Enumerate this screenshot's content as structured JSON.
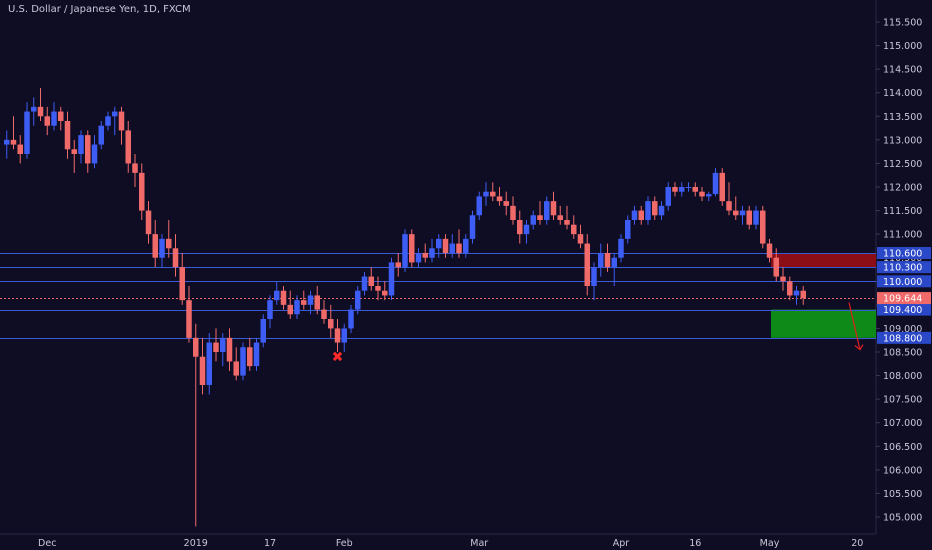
{
  "chart_data": {
    "type": "candlestick",
    "title": "U.S. Dollar / Japanese Yen, 1D, FXCM",
    "ylim": [
      104.75,
      115.75
    ],
    "y_ticks": [
      "115.500",
      "115.000",
      "114.500",
      "114.000",
      "113.500",
      "113.000",
      "112.500",
      "112.000",
      "111.500",
      "111.000",
      "110.500",
      "110.000",
      "109.500",
      "109.000",
      "108.500",
      "108.000",
      "107.500",
      "107.000",
      "106.500",
      "106.000",
      "105.500",
      "105.000"
    ],
    "x_ticks": [
      {
        "label": "Dec",
        "index": 6
      },
      {
        "label": "2019",
        "index": 28
      },
      {
        "label": "17",
        "index": 39
      },
      {
        "label": "Feb",
        "index": 50
      },
      {
        "label": "Mar",
        "index": 70
      },
      {
        "label": "Apr",
        "index": 91
      },
      {
        "label": "16",
        "index": 102
      },
      {
        "label": "May",
        "index": 113
      },
      {
        "label": "20",
        "index": 126
      }
    ],
    "horizontal_levels": [
      {
        "value": 110.6,
        "label": "110.600"
      },
      {
        "value": 110.3,
        "label": "110.300"
      },
      {
        "value": 110.0,
        "label": "110.000"
      },
      {
        "value": 109.4,
        "label": "109.400"
      },
      {
        "value": 108.8,
        "label": "108.800"
      }
    ],
    "last_price": {
      "value": 109.644,
      "label": "109.644"
    },
    "zones": [
      {
        "kind": "resistance",
        "from": 110.6,
        "to": 110.3,
        "color": "#8b0e16"
      },
      {
        "kind": "target",
        "from": 109.4,
        "to": 108.8,
        "color": "#0d8a17"
      }
    ],
    "marker": {
      "symbol": "✖",
      "index": 49,
      "value": 108.43
    },
    "colors": {
      "up": "#3d5df5",
      "down": "#f06a6a",
      "level": "#3a5bd6",
      "price": "#f06a6a",
      "axis_text": "#c8c8d8",
      "background": "#0f0d24"
    },
    "ohlc": [
      [
        112.9,
        113.2,
        112.6,
        113.0
      ],
      [
        113.0,
        113.5,
        112.8,
        112.9
      ],
      [
        112.9,
        113.1,
        112.5,
        112.7
      ],
      [
        112.7,
        113.8,
        112.6,
        113.6
      ],
      [
        113.6,
        113.9,
        113.3,
        113.7
      ],
      [
        113.7,
        114.1,
        113.4,
        113.5
      ],
      [
        113.5,
        113.7,
        113.1,
        113.3
      ],
      [
        113.3,
        113.8,
        113.2,
        113.6
      ],
      [
        113.6,
        113.7,
        113.2,
        113.4
      ],
      [
        113.4,
        113.6,
        112.6,
        112.8
      ],
      [
        112.8,
        113.0,
        112.3,
        112.7
      ],
      [
        112.7,
        113.2,
        112.5,
        113.1
      ],
      [
        113.1,
        113.2,
        112.3,
        112.5
      ],
      [
        112.5,
        113.1,
        112.4,
        112.9
      ],
      [
        112.9,
        113.4,
        112.8,
        113.3
      ],
      [
        113.3,
        113.6,
        113.2,
        113.5
      ],
      [
        113.5,
        113.7,
        113.1,
        113.6
      ],
      [
        113.6,
        113.7,
        112.9,
        113.2
      ],
      [
        113.2,
        113.4,
        112.3,
        112.5
      ],
      [
        112.5,
        112.7,
        112.0,
        112.3
      ],
      [
        112.3,
        112.5,
        111.3,
        111.5
      ],
      [
        111.5,
        111.7,
        110.8,
        111.0
      ],
      [
        111.0,
        111.3,
        110.3,
        110.5
      ],
      [
        110.5,
        111.0,
        110.3,
        110.9
      ],
      [
        110.9,
        111.3,
        110.5,
        110.7
      ],
      [
        110.7,
        111.0,
        110.1,
        110.3
      ],
      [
        110.3,
        110.6,
        109.5,
        109.6
      ],
      [
        109.6,
        109.9,
        108.7,
        108.8
      ],
      [
        108.8,
        109.1,
        104.8,
        108.4
      ],
      [
        108.4,
        108.8,
        107.6,
        107.8
      ],
      [
        107.8,
        108.9,
        107.6,
        108.7
      ],
      [
        108.7,
        109.0,
        108.3,
        108.5
      ],
      [
        108.5,
        108.9,
        108.2,
        108.8
      ],
      [
        108.8,
        109.0,
        108.1,
        108.3
      ],
      [
        108.3,
        108.6,
        107.9,
        108.0
      ],
      [
        108.0,
        108.7,
        107.9,
        108.6
      ],
      [
        108.6,
        108.8,
        108.1,
        108.2
      ],
      [
        108.2,
        108.8,
        108.1,
        108.7
      ],
      [
        108.7,
        109.3,
        108.6,
        109.2
      ],
      [
        109.2,
        109.7,
        109.0,
        109.6
      ],
      [
        109.6,
        110.0,
        109.5,
        109.8
      ],
      [
        109.8,
        109.9,
        109.4,
        109.5
      ],
      [
        109.5,
        109.8,
        109.2,
        109.3
      ],
      [
        109.3,
        109.7,
        109.2,
        109.6
      ],
      [
        109.6,
        109.8,
        109.4,
        109.5
      ],
      [
        109.5,
        109.8,
        109.3,
        109.7
      ],
      [
        109.7,
        109.9,
        109.3,
        109.4
      ],
      [
        109.4,
        109.6,
        109.1,
        109.2
      ],
      [
        109.2,
        109.5,
        108.8,
        109.0
      ],
      [
        109.0,
        109.2,
        108.5,
        108.7
      ],
      [
        108.7,
        109.1,
        108.5,
        109.0
      ],
      [
        109.0,
        109.5,
        108.9,
        109.4
      ],
      [
        109.4,
        109.9,
        109.3,
        109.8
      ],
      [
        109.8,
        110.2,
        109.7,
        110.1
      ],
      [
        110.1,
        110.3,
        109.8,
        109.9
      ],
      [
        109.9,
        110.1,
        109.6,
        109.8
      ],
      [
        109.8,
        110.0,
        109.6,
        109.7
      ],
      [
        109.7,
        110.5,
        109.6,
        110.4
      ],
      [
        110.4,
        110.6,
        110.1,
        110.3
      ],
      [
        110.3,
        111.1,
        110.2,
        111.0
      ],
      [
        111.0,
        111.1,
        110.3,
        110.4
      ],
      [
        110.4,
        110.7,
        110.3,
        110.6
      ],
      [
        110.6,
        110.8,
        110.4,
        110.5
      ],
      [
        110.5,
        110.9,
        110.4,
        110.7
      ],
      [
        110.7,
        111.0,
        110.5,
        110.9
      ],
      [
        110.9,
        111.0,
        110.5,
        110.6
      ],
      [
        110.6,
        111.0,
        110.5,
        110.8
      ],
      [
        110.8,
        111.1,
        110.5,
        110.6
      ],
      [
        110.6,
        111.0,
        110.5,
        110.9
      ],
      [
        110.9,
        111.5,
        110.8,
        111.4
      ],
      [
        111.4,
        111.9,
        111.3,
        111.8
      ],
      [
        111.8,
        112.1,
        111.6,
        111.9
      ],
      [
        111.9,
        112.1,
        111.7,
        111.8
      ],
      [
        111.8,
        112.0,
        111.6,
        111.7
      ],
      [
        111.7,
        111.9,
        111.4,
        111.6
      ],
      [
        111.6,
        111.8,
        111.2,
        111.3
      ],
      [
        111.3,
        111.5,
        110.8,
        111.0
      ],
      [
        111.0,
        111.3,
        110.8,
        111.2
      ],
      [
        111.2,
        111.5,
        111.1,
        111.4
      ],
      [
        111.4,
        111.7,
        111.2,
        111.3
      ],
      [
        111.3,
        111.8,
        111.2,
        111.7
      ],
      [
        111.7,
        111.9,
        111.3,
        111.4
      ],
      [
        111.4,
        111.6,
        111.2,
        111.3
      ],
      [
        111.3,
        111.6,
        111.1,
        111.2
      ],
      [
        111.2,
        111.4,
        110.9,
        111.0
      ],
      [
        111.0,
        111.2,
        110.7,
        110.8
      ],
      [
        110.8,
        111.0,
        109.7,
        109.9
      ],
      [
        109.9,
        110.4,
        109.6,
        110.3
      ],
      [
        110.3,
        110.8,
        110.1,
        110.6
      ],
      [
        110.6,
        110.8,
        110.2,
        110.3
      ],
      [
        110.3,
        110.6,
        109.9,
        110.5
      ],
      [
        110.5,
        111.0,
        110.4,
        110.9
      ],
      [
        110.9,
        111.4,
        110.8,
        111.3
      ],
      [
        111.3,
        111.6,
        111.2,
        111.5
      ],
      [
        111.5,
        111.6,
        111.2,
        111.3
      ],
      [
        111.3,
        111.8,
        111.2,
        111.7
      ],
      [
        111.7,
        111.8,
        111.3,
        111.4
      ],
      [
        111.4,
        111.7,
        111.3,
        111.6
      ],
      [
        111.6,
        112.1,
        111.5,
        112.0
      ],
      [
        112.0,
        112.1,
        111.8,
        111.9
      ],
      [
        111.9,
        112.1,
        111.8,
        112.0
      ],
      [
        112.0,
        112.1,
        111.9,
        112.0
      ],
      [
        112.0,
        112.1,
        111.8,
        111.9
      ],
      [
        111.9,
        112.0,
        111.7,
        111.8
      ],
      [
        111.8,
        111.9,
        111.7,
        111.85
      ],
      [
        111.85,
        112.4,
        111.8,
        112.3
      ],
      [
        112.3,
        112.4,
        111.6,
        111.7
      ],
      [
        111.7,
        112.1,
        111.4,
        111.5
      ],
      [
        111.5,
        111.8,
        111.3,
        111.4
      ],
      [
        111.4,
        111.6,
        111.2,
        111.5
      ],
      [
        111.5,
        111.6,
        111.1,
        111.2
      ],
      [
        111.2,
        111.6,
        111.1,
        111.5
      ],
      [
        111.5,
        111.6,
        110.7,
        110.8
      ],
      [
        110.8,
        110.9,
        110.4,
        110.5
      ],
      [
        110.5,
        110.7,
        110.0,
        110.1
      ],
      [
        110.1,
        110.3,
        109.8,
        110.0
      ],
      [
        110.0,
        110.1,
        109.6,
        109.7
      ],
      [
        109.7,
        109.9,
        109.5,
        109.8
      ],
      [
        109.8,
        109.9,
        109.5,
        109.644
      ]
    ]
  }
}
